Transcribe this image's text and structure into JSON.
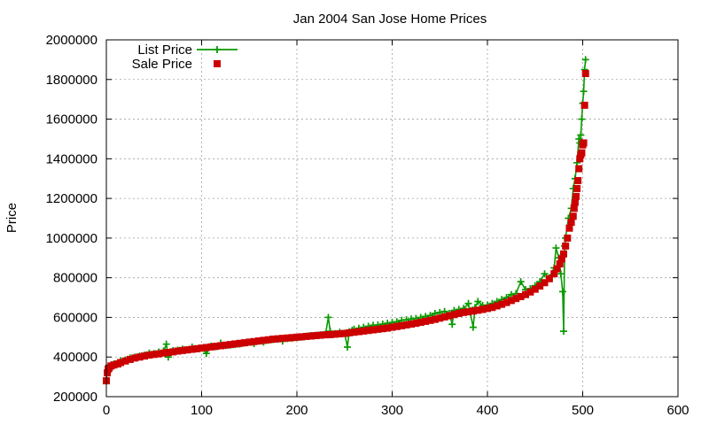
{
  "colors": {
    "list_price": "#089a00",
    "sale_price": "#cc0000",
    "grid": "#a0a0a0",
    "axis": "#000000"
  },
  "chart_data": {
    "type": "scatter",
    "title": "Jan 2004 San Jose Home Prices",
    "xlabel": "",
    "ylabel": "Price",
    "xlim": [
      0,
      600
    ],
    "ylim": [
      200000,
      2000000
    ],
    "xticks": [
      0,
      100,
      200,
      300,
      400,
      500,
      600
    ],
    "xtick_labels": [
      "0",
      "100",
      "200",
      "300",
      "400",
      "500",
      "600"
    ],
    "yticks": [
      200000,
      400000,
      600000,
      800000,
      1000000,
      1200000,
      1400000,
      1600000,
      1800000,
      2000000
    ],
    "ytick_labels": [
      "200000",
      "400000",
      "600000",
      "800000",
      "1000000",
      "1200000",
      "1400000",
      "1600000",
      "1800000",
      "2000000"
    ],
    "grid": true,
    "legend_position": "top-left",
    "series": [
      {
        "name": "List Price",
        "style": "linespoints",
        "marker": "plus",
        "x": [
          0,
          1,
          2,
          3,
          5,
          8,
          12,
          15,
          20,
          25,
          30,
          35,
          40,
          45,
          50,
          55,
          60,
          63,
          65,
          70,
          75,
          80,
          85,
          90,
          95,
          100,
          105,
          110,
          115,
          120,
          125,
          130,
          135,
          140,
          145,
          150,
          155,
          160,
          165,
          170,
          175,
          180,
          185,
          190,
          195,
          200,
          205,
          210,
          215,
          220,
          225,
          230,
          233,
          235,
          237,
          240,
          245,
          250,
          253,
          255,
          258,
          260,
          265,
          270,
          275,
          280,
          285,
          290,
          295,
          300,
          305,
          310,
          315,
          320,
          325,
          330,
          335,
          340,
          345,
          350,
          355,
          360,
          363,
          365,
          370,
          375,
          380,
          385,
          387,
          390,
          395,
          400,
          405,
          410,
          415,
          420,
          425,
          430,
          435,
          440,
          445,
          450,
          455,
          460,
          465,
          470,
          472,
          475,
          477,
          479,
          480,
          481,
          482,
          485,
          488,
          490,
          492,
          494,
          496,
          497,
          498,
          499,
          500,
          501,
          502,
          503
        ],
        "values": [
          280000,
          330000,
          350000,
          345000,
          360000,
          365000,
          370000,
          380000,
          385000,
          395000,
          400000,
          405000,
          410000,
          420000,
          418000,
          425000,
          430000,
          465000,
          400000,
          432000,
          435000,
          440000,
          437000,
          450000,
          442000,
          445000,
          418000,
          455000,
          452000,
          470000,
          458000,
          460000,
          463000,
          465000,
          470000,
          475000,
          468000,
          480000,
          475000,
          485000,
          488000,
          490000,
          480000,
          493000,
          495000,
          498000,
          500000,
          505000,
          508000,
          510000,
          512000,
          515000,
          600000,
          530000,
          515000,
          518000,
          525000,
          520000,
          450000,
          528000,
          535000,
          540000,
          545000,
          550000,
          555000,
          560000,
          562000,
          566000,
          570000,
          574000,
          578000,
          585000,
          588000,
          592000,
          595000,
          600000,
          605000,
          610000,
          620000,
          625000,
          630000,
          620000,
          565000,
          635000,
          640000,
          645000,
          670000,
          550000,
          650000,
          680000,
          660000,
          662000,
          670000,
          680000,
          690000,
          700000,
          715000,
          720000,
          780000,
          740000,
          745000,
          760000,
          780000,
          820000,
          800000,
          850000,
          950000,
          900000,
          820000,
          730000,
          530000,
          960000,
          1000000,
          1100000,
          1150000,
          1250000,
          1300000,
          1380000,
          1500000,
          1480000,
          1520000,
          1600000,
          1680000,
          1740000,
          1850000,
          1900000
        ]
      },
      {
        "name": "Sale Price",
        "style": "points",
        "marker": "square",
        "x": [
          0,
          1,
          2,
          3,
          5,
          8,
          12,
          15,
          20,
          25,
          30,
          35,
          40,
          45,
          50,
          55,
          60,
          65,
          70,
          75,
          80,
          85,
          90,
          95,
          100,
          105,
          110,
          115,
          120,
          125,
          130,
          135,
          140,
          145,
          150,
          155,
          160,
          165,
          170,
          175,
          180,
          185,
          190,
          195,
          200,
          205,
          210,
          215,
          220,
          225,
          230,
          235,
          240,
          245,
          250,
          255,
          260,
          265,
          270,
          275,
          280,
          285,
          290,
          295,
          300,
          305,
          310,
          315,
          320,
          325,
          330,
          335,
          340,
          345,
          350,
          355,
          360,
          365,
          370,
          375,
          380,
          385,
          390,
          395,
          400,
          405,
          410,
          415,
          420,
          425,
          430,
          435,
          440,
          445,
          450,
          455,
          460,
          465,
          470,
          473,
          476,
          478,
          480,
          482,
          484,
          486,
          488,
          490,
          491,
          492,
          493,
          494,
          495,
          496,
          497,
          498,
          499,
          500,
          501,
          502,
          503
        ],
        "values": [
          280000,
          320000,
          340000,
          345000,
          355000,
          360000,
          365000,
          372000,
          380000,
          388000,
          395000,
          400000,
          405000,
          410000,
          413000,
          416000,
          420000,
          423000,
          426000,
          430000,
          433000,
          436000,
          439000,
          442000,
          445000,
          448000,
          451000,
          454000,
          457000,
          460000,
          463000,
          466000,
          469000,
          472000,
          475000,
          478000,
          481000,
          484000,
          487000,
          490000,
          492000,
          494000,
          496000,
          498000,
          500000,
          502000,
          504000,
          506000,
          508000,
          510000,
          512000,
          513000,
          515000,
          517000,
          519000,
          522000,
          525000,
          528000,
          531000,
          534000,
          537000,
          540000,
          543000,
          546000,
          550000,
          554000,
          558000,
          562000,
          566000,
          570000,
          575000,
          580000,
          585000,
          590000,
          596000,
          602000,
          608000,
          614000,
          620000,
          625000,
          628000,
          632000,
          636000,
          640000,
          645000,
          650000,
          658000,
          666000,
          675000,
          685000,
          695000,
          705000,
          715000,
          728000,
          742000,
          758000,
          775000,
          795000,
          820000,
          845000,
          870000,
          895000,
          920000,
          960000,
          1000000,
          1050000,
          1080000,
          1110000,
          1150000,
          1180000,
          1210000,
          1250000,
          1290000,
          1350000,
          1400000,
          1420000,
          1430000,
          1470000,
          1480000,
          1670000,
          1830000
        ]
      }
    ]
  }
}
